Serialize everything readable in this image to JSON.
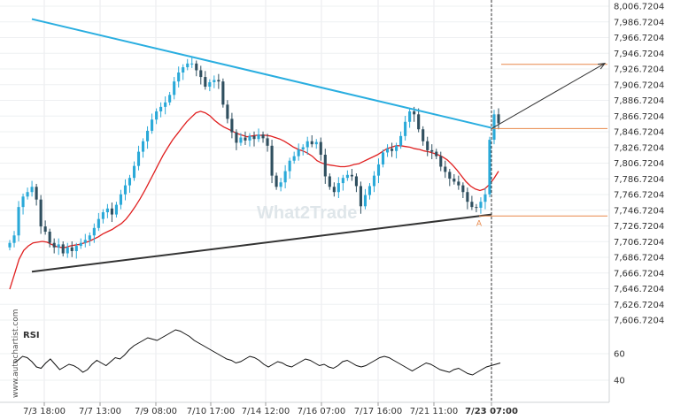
{
  "watermark": "What2Trade",
  "side_credit": "www.autochartist.com",
  "rsi_label": "RSI",
  "point_label": "A",
  "colors": {
    "up_candle": "#2aa9d8",
    "down_candle": "#2f4f5f",
    "ma_line": "#e02020",
    "resistance": "#2aaee0",
    "support": "#333333",
    "target": "#e8884a",
    "projection": "#333333",
    "rsi_line": "#111111"
  },
  "chart_data": {
    "type": "candlestick",
    "y_axis": {
      "min": 7586.7204,
      "max": 8006.7204,
      "ticks": [
        "8,006.7204",
        "7,986.7204",
        "7,966.7204",
        "7,946.7204",
        "7,926.7204",
        "7,906.7204",
        "7,886.7204",
        "7,866.7204",
        "7,846.7204",
        "7,826.7204",
        "7,806.7204",
        "7,786.7204",
        "7,766.7204",
        "7,746.7204",
        "7,726.7204",
        "7,706.7204",
        "7,686.7204",
        "7,666.7204",
        "7,646.7204",
        "7,626.7204",
        "7,606.7204"
      ]
    },
    "x_axis": {
      "ticks": [
        "7/3 18:00",
        "7/7 13:00",
        "7/9 08:00",
        "7/10 17:00",
        "7/14 12:00",
        "7/16 07:00",
        "7/17 16:00",
        "7/21 11:00",
        "7/23 07:00"
      ],
      "highlight": "7/23 07:00"
    },
    "close_series": [
      7690,
      7700,
      7738,
      7752,
      7758,
      7765,
      7748,
      7712,
      7705,
      7690,
      7684,
      7688,
      7676,
      7684,
      7679,
      7686,
      7690,
      7694,
      7700,
      7710,
      7722,
      7731,
      7736,
      7728,
      7741,
      7755,
      7767,
      7777,
      7793,
      7812,
      7826,
      7840,
      7855,
      7866,
      7872,
      7878,
      7888,
      7906,
      7918,
      7925,
      7930,
      7930,
      7921,
      7912,
      7899,
      7905,
      7908,
      7906,
      7875,
      7856,
      7838,
      7824,
      7831,
      7827,
      7833,
      7829,
      7835,
      7830,
      7820,
      7780,
      7765,
      7771,
      7786,
      7800,
      7806,
      7815,
      7818,
      7826,
      7822,
      7825,
      7808,
      7779,
      7765,
      7758,
      7770,
      7777,
      7781,
      7779,
      7766,
      7739,
      7754,
      7766,
      7780,
      7795,
      7811,
      7816,
      7813,
      7820,
      7833,
      7852,
      7866,
      7862,
      7842,
      7826,
      7814,
      7812,
      7806,
      7792,
      7785,
      7776,
      7772,
      7767,
      7758,
      7745,
      7738,
      7737,
      7745,
      7755,
      7828,
      7862,
      7850
    ],
    "ma_series": [
      7628,
      7648,
      7668,
      7680,
      7686,
      7690,
      7691,
      7692,
      7691,
      7688,
      7685,
      7684,
      7684,
      7686,
      7687,
      7688,
      7690,
      7692,
      7695,
      7698,
      7702,
      7705,
      7708,
      7712,
      7716,
      7722,
      7730,
      7739,
      7749,
      7760,
      7772,
      7784,
      7796,
      7808,
      7818,
      7828,
      7836,
      7844,
      7852,
      7858,
      7864,
      7866,
      7864,
      7860,
      7854,
      7849,
      7845,
      7842,
      7839,
      7836,
      7834,
      7832,
      7833,
      7834,
      7834,
      7834,
      7833,
      7831,
      7829,
      7826,
      7822,
      7818,
      7815,
      7813,
      7810,
      7806,
      7800,
      7797,
      7795,
      7794,
      7793,
      7792,
      7792,
      7793,
      7795,
      7796,
      7799,
      7802,
      7805,
      7808,
      7812,
      7816,
      7818,
      7820,
      7820,
      7819,
      7818,
      7816,
      7815,
      7813,
      7812,
      7810,
      7808,
      7805,
      7801,
      7795,
      7788,
      7780,
      7772,
      7766,
      7762,
      7760,
      7762,
      7768,
      7776,
      7786
    ],
    "rsi_axis": {
      "min": 30,
      "max": 80,
      "ticks": [
        "60",
        "40"
      ]
    },
    "rsi_series": [
      53,
      55,
      58,
      57,
      54,
      50,
      49,
      53,
      56,
      52,
      48,
      50,
      52,
      51,
      49,
      46,
      48,
      52,
      55,
      53,
      51,
      54,
      57,
      56,
      59,
      63,
      66,
      68,
      70,
      72,
      71,
      70,
      72,
      74,
      76,
      78,
      77,
      75,
      73,
      70,
      68,
      66,
      64,
      62,
      60,
      58,
      56,
      55,
      53,
      54,
      56,
      58,
      57,
      55,
      52,
      50,
      52,
      54,
      53,
      51,
      50,
      52,
      54,
      56,
      55,
      53,
      51,
      52,
      50,
      49,
      51,
      54,
      55,
      53,
      51,
      50,
      51,
      53,
      55,
      57,
      58,
      57,
      55,
      53,
      51,
      49,
      47,
      49,
      51,
      53,
      52,
      50,
      48,
      47,
      46,
      48,
      49,
      47,
      45,
      44,
      46,
      48,
      50,
      51,
      52,
      53
    ],
    "patterns": {
      "resistance_line": {
        "from": [
          "7/3 18:00",
          7989.5
        ],
        "to": [
          "7/23 07:00",
          7844
        ]
      },
      "support_line": {
        "from": [
          "7/3 18:00",
          7651.5
        ],
        "to": [
          "7/23 07:00",
          7728
        ]
      },
      "target_level": 7929,
      "breakout_level": 7843,
      "point_a_level": 7726
    }
  }
}
